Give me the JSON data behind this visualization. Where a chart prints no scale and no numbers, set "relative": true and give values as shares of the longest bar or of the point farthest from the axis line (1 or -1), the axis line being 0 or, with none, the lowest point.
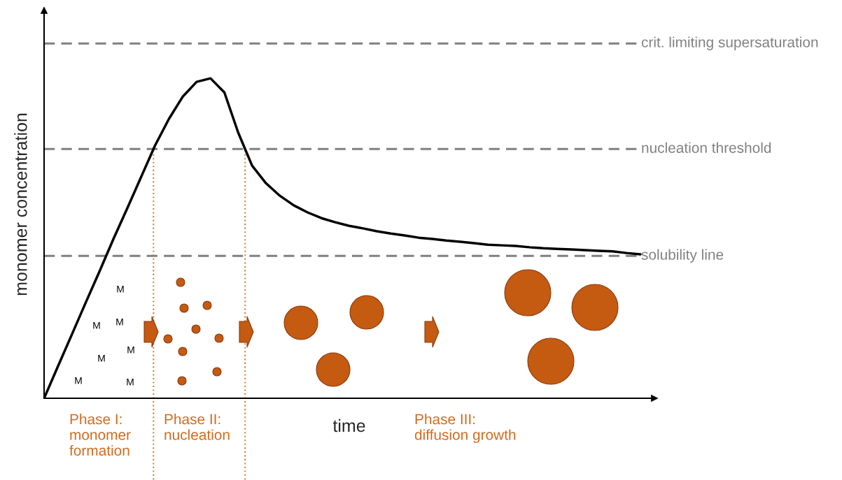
{
  "chart_data": {
    "type": "line",
    "relative": true,
    "xlabel": "time",
    "ylabel": "monomer concentration",
    "categories": [
      null,
      null,
      null,
      null,
      null,
      null,
      null,
      null,
      null,
      null,
      null,
      null,
      null,
      null,
      null,
      null,
      null,
      null,
      null,
      null,
      null,
      null,
      null,
      null,
      null,
      null,
      null,
      null,
      null,
      null,
      null,
      null,
      null,
      null,
      null,
      null,
      null,
      null,
      null,
      null,
      null,
      null,
      null,
      null
    ],
    "series": [
      {
        "color": "#000000",
        "values": [
          0,
          0.1,
          0.199,
          0.299,
          0.397,
          0.498,
          0.594,
          0.692,
          0.79,
          0.873,
          0.943,
          0.989,
          1.0,
          0.956,
          0.83,
          0.727,
          0.672,
          0.633,
          0.603,
          0.581,
          0.563,
          0.55,
          0.539,
          0.531,
          0.522,
          0.515,
          0.509,
          0.502,
          0.498,
          0.493,
          0.489,
          0.485,
          0.48,
          0.478,
          0.476,
          0.472,
          0.469,
          0.467,
          0.465,
          0.463,
          0.461,
          0.459,
          0.454,
          0.45
        ]
      }
    ],
    "ref_lines": [
      {
        "axis": "y",
        "value": 1.109,
        "label": "crit. limiting supersaturation",
        "color": "#808080",
        "line_style": "dashed"
      },
      {
        "axis": "y",
        "value": 0.779,
        "label": "nucleation threshold",
        "color": "#808080",
        "line_style": "dashed"
      },
      {
        "axis": "y",
        "value": 0.445,
        "label": "solubility line",
        "color": "#808080",
        "line_style": "dashed"
      }
    ],
    "annotations": [
      "Phase I:\nmonomer\nformation",
      "Phase II:\nnucleation",
      "Phase III:\ndiffusion growth",
      "M",
      "M",
      "M",
      "M",
      "M",
      "M",
      "M"
    ],
    "grid": false,
    "legend": false,
    "marker": "none",
    "line_style": "solid"
  }
}
